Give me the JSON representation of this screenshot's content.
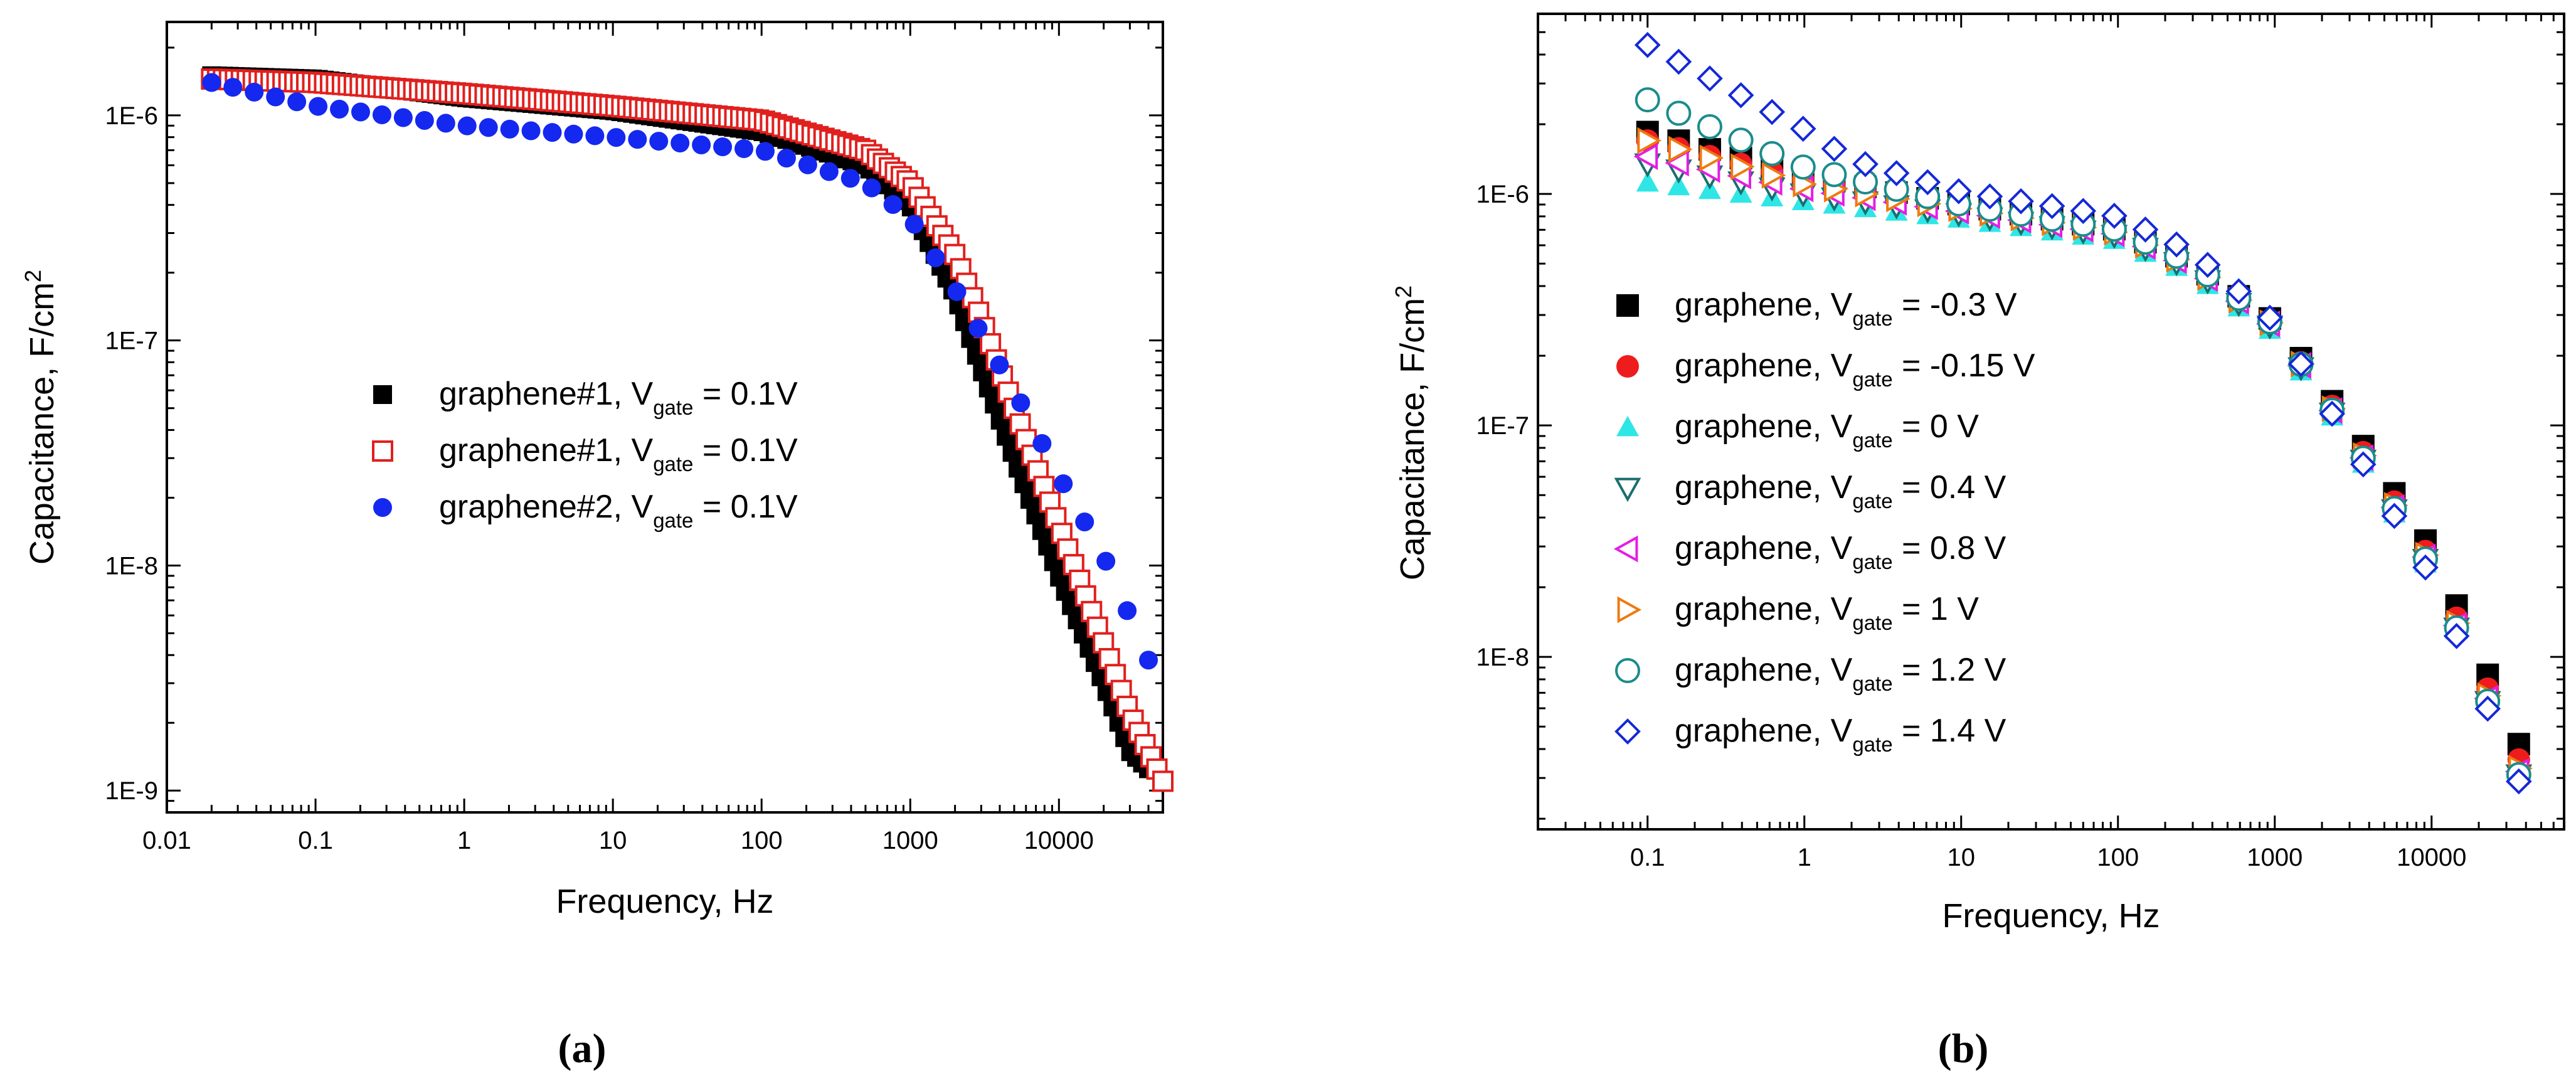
{
  "chart_data": [
    {
      "panel": "(a)",
      "type": "scatter",
      "x_scale": "log",
      "y_scale": "log",
      "xlabel": "Frequency, Hz",
      "ylabel_main": "Capacitance, F/cm",
      "ylabel_sup": "2",
      "xlim": [
        0.01,
        50000
      ],
      "ylim": [
        8e-10,
        2.6e-06
      ],
      "x_ticks": [
        0.01,
        0.1,
        1,
        10,
        100,
        1000,
        10000
      ],
      "x_tick_labels": [
        "0.01",
        "0.1",
        "1",
        "10",
        "100",
        "1000",
        "10000"
      ],
      "y_ticks": [
        1e-09,
        1e-08,
        1e-07,
        1e-06
      ],
      "y_tick_labels": [
        "1E-9",
        "1E-8",
        "1E-7",
        "1E-6"
      ],
      "grid": false,
      "legend_position": "center",
      "series": [
        {
          "name": "graphene#1, V",
          "sub": "gate",
          "suffix": "= 0.1V",
          "marker": "square-filled",
          "color": "#000000",
          "curve": {
            "x_start": 0.02,
            "x_end": 40000,
            "per_decade": 25,
            "points": [
              [
                0.02,
                1.5e-06
              ],
              [
                0.1,
                1.45e-06
              ],
              [
                1,
                1.2e-06
              ],
              [
                10,
                1.05e-06
              ],
              [
                100,
                8.5e-07
              ],
              [
                500,
                6e-07
              ],
              [
                1000,
                4e-07
              ],
              [
                2000,
                1.6e-07
              ],
              [
                3000,
                7.5e-08
              ],
              [
                5000,
                3e-08
              ],
              [
                10000,
                9e-09
              ],
              [
                20000,
                3e-09
              ],
              [
                30000,
                1.5e-09
              ],
              [
                40000,
                1.25e-09
              ]
            ]
          }
        },
        {
          "name": "graphene#1, V",
          "sub": "gate",
          "suffix": "= 0.1V",
          "marker": "square-open",
          "color": "#e0201e",
          "curve": {
            "x_start": 0.02,
            "x_end": 50000,
            "per_decade": 25,
            "points": [
              [
                0.02,
                1.45e-06
              ],
              [
                0.1,
                1.4e-06
              ],
              [
                1,
                1.25e-06
              ],
              [
                10,
                1.1e-06
              ],
              [
                100,
                9.5e-07
              ],
              [
                500,
                7e-07
              ],
              [
                1000,
                5e-07
              ],
              [
                2000,
                2.4e-07
              ],
              [
                3000,
                1.25e-07
              ],
              [
                5000,
                5e-08
              ],
              [
                10000,
                1.5e-08
              ],
              [
                20000,
                4.5e-09
              ],
              [
                30000,
                2.2e-09
              ],
              [
                50000,
                1.1e-09
              ]
            ]
          }
        },
        {
          "name": "graphene#2, V",
          "sub": "gate",
          "suffix": "= 0.1V",
          "marker": "circle-filled",
          "color": "#1428f0",
          "curve": {
            "x_start": 0.02,
            "x_end": 40000,
            "per_decade": 7,
            "points": [
              [
                0.02,
                1.4e-06
              ],
              [
                0.1,
                1.1e-06
              ],
              [
                1,
                9e-07
              ],
              [
                10,
                8e-07
              ],
              [
                100,
                7e-07
              ],
              [
                500,
                5e-07
              ],
              [
                1000,
                3.5e-07
              ],
              [
                2000,
                1.7e-07
              ],
              [
                5000,
                6e-08
              ],
              [
                10000,
                2.5e-08
              ],
              [
                20000,
                1.1e-08
              ],
              [
                40000,
                3.8e-09
              ]
            ]
          }
        }
      ]
    },
    {
      "panel": "(b)",
      "type": "scatter",
      "x_scale": "log",
      "y_scale": "log",
      "xlabel": "Frequency, Hz",
      "ylabel_main": "Capacitance, F/cm",
      "ylabel_sup": "2",
      "xlim": [
        0.02,
        70000
      ],
      "ylim": [
        1.8e-09,
        6e-06
      ],
      "x_ticks": [
        0.1,
        1,
        10,
        100,
        1000,
        10000
      ],
      "x_tick_labels": [
        "0.1",
        "1",
        "10",
        "100",
        "1000",
        "10000"
      ],
      "y_ticks": [
        1e-08,
        1e-07,
        1e-06
      ],
      "y_tick_labels": [
        "1E-8",
        "1E-7",
        "1E-6"
      ],
      "grid": false,
      "legend_position": "center-left",
      "series": [
        {
          "name": "graphene, V",
          "sub": "gate",
          "suffix": "= -0.3 V",
          "marker": "square-filled",
          "color": "#000000",
          "curve": {
            "x_start": 0.1,
            "x_end": 36000,
            "per_decade": 5,
            "points": [
              [
                0.1,
                1.85e-06
              ],
              [
                1,
                1.2e-06
              ],
              [
                10,
                9e-07
              ],
              [
                100,
                7e-07
              ],
              [
                300,
                5e-07
              ],
              [
                1000,
                2.8e-07
              ],
              [
                3000,
                1e-07
              ],
              [
                10000,
                2.9e-08
              ],
              [
                36000,
                4.2e-09
              ]
            ]
          }
        },
        {
          "name": "graphene, V",
          "sub": "gate",
          "suffix": "= -0.15 V",
          "marker": "circle-filled",
          "color": "#ee1c1c",
          "curve": {
            "x_start": 0.1,
            "x_end": 36000,
            "per_decade": 5,
            "points": [
              [
                0.1,
                1.7e-06
              ],
              [
                1,
                1.15e-06
              ],
              [
                10,
                8.8e-07
              ],
              [
                100,
                6.9e-07
              ],
              [
                300,
                4.9e-07
              ],
              [
                1000,
                2.7e-07
              ],
              [
                3000,
                9.5e-08
              ],
              [
                10000,
                2.6e-08
              ],
              [
                36000,
                3.6e-09
              ]
            ]
          }
        },
        {
          "name": "graphene, V",
          "sub": "gate",
          "suffix": "= 0 V",
          "marker": "triangle-up-filled",
          "color": "#2ee6e6",
          "curve": {
            "x_start": 0.1,
            "x_end": 36000,
            "per_decade": 5,
            "points": [
              [
                0.1,
                1.12e-06
              ],
              [
                1,
                9.3e-07
              ],
              [
                10,
                7.8e-07
              ],
              [
                100,
                6.3e-07
              ],
              [
                300,
                4.5e-07
              ],
              [
                1000,
                2.5e-07
              ],
              [
                3000,
                8.5e-08
              ],
              [
                10000,
                2.3e-08
              ],
              [
                36000,
                3.2e-09
              ]
            ]
          }
        },
        {
          "name": "graphene, V",
          "sub": "gate",
          "suffix": "= 0.4 V",
          "marker": "triangle-down-open",
          "color": "#1a6e6e",
          "curve": {
            "x_start": 0.1,
            "x_end": 36000,
            "per_decade": 5,
            "points": [
              [
                0.1,
                1.35e-06
              ],
              [
                1,
                1e-06
              ],
              [
                10,
                8.2e-07
              ],
              [
                100,
                6.6e-07
              ],
              [
                300,
                4.7e-07
              ],
              [
                1000,
                2.6e-07
              ],
              [
                3000,
                8.8e-08
              ],
              [
                10000,
                2.4e-08
              ],
              [
                36000,
                3.1e-09
              ]
            ]
          }
        },
        {
          "name": "graphene, V",
          "sub": "gate",
          "suffix": "= 0.8 V",
          "marker": "triangle-left-open",
          "color": "#e41ee4",
          "curve": {
            "x_start": 0.1,
            "x_end": 36000,
            "per_decade": 5,
            "points": [
              [
                0.1,
                1.45e-06
              ],
              [
                1,
                1.05e-06
              ],
              [
                10,
                8.4e-07
              ],
              [
                100,
                6.7e-07
              ],
              [
                300,
                4.8e-07
              ],
              [
                1000,
                2.65e-07
              ],
              [
                3000,
                9e-08
              ],
              [
                10000,
                2.45e-08
              ],
              [
                36000,
                3.2e-09
              ]
            ]
          }
        },
        {
          "name": "graphene, V",
          "sub": "gate",
          "suffix": "= 1 V",
          "marker": "triangle-right-open",
          "color": "#ee7a10",
          "curve": {
            "x_start": 0.1,
            "x_end": 36000,
            "per_decade": 5,
            "points": [
              [
                0.1,
                1.7e-06
              ],
              [
                1,
                1.1e-06
              ],
              [
                10,
                8.6e-07
              ],
              [
                100,
                6.8e-07
              ],
              [
                300,
                4.85e-07
              ],
              [
                1000,
                2.68e-07
              ],
              [
                3000,
                9.2e-08
              ],
              [
                10000,
                2.5e-08
              ],
              [
                36000,
                3.3e-09
              ]
            ]
          }
        },
        {
          "name": "graphene, V",
          "sub": "gate",
          "suffix": "= 1.2 V",
          "marker": "circle-open",
          "color": "#1a8c8c",
          "curve": {
            "x_start": 0.1,
            "x_end": 36000,
            "per_decade": 5,
            "points": [
              [
                0.1,
                2.55e-06
              ],
              [
                1,
                1.3e-06
              ],
              [
                10,
                9e-07
              ],
              [
                100,
                7e-07
              ],
              [
                300,
                5e-07
              ],
              [
                1000,
                2.7e-07
              ],
              [
                3000,
                9e-08
              ],
              [
                10000,
                2.4e-08
              ],
              [
                36000,
                3.1e-09
              ]
            ]
          }
        },
        {
          "name": "graphene, V",
          "sub": "gate",
          "suffix": "= 1.4 V",
          "marker": "diamond-open",
          "color": "#1428d8",
          "curve": {
            "x_start": 0.1,
            "x_end": 36000,
            "per_decade": 5,
            "points": [
              [
                0.1,
                4.4e-06
              ],
              [
                1,
                1.9e-06
              ],
              [
                2,
                1.4e-06
              ],
              [
                10,
                1.02e-06
              ],
              [
                100,
                8e-07
              ],
              [
                300,
                5.6e-07
              ],
              [
                1000,
                2.8e-07
              ],
              [
                3000,
                8.5e-08
              ],
              [
                10000,
                2.2e-08
              ],
              [
                36000,
                2.9e-09
              ]
            ]
          }
        }
      ]
    }
  ]
}
